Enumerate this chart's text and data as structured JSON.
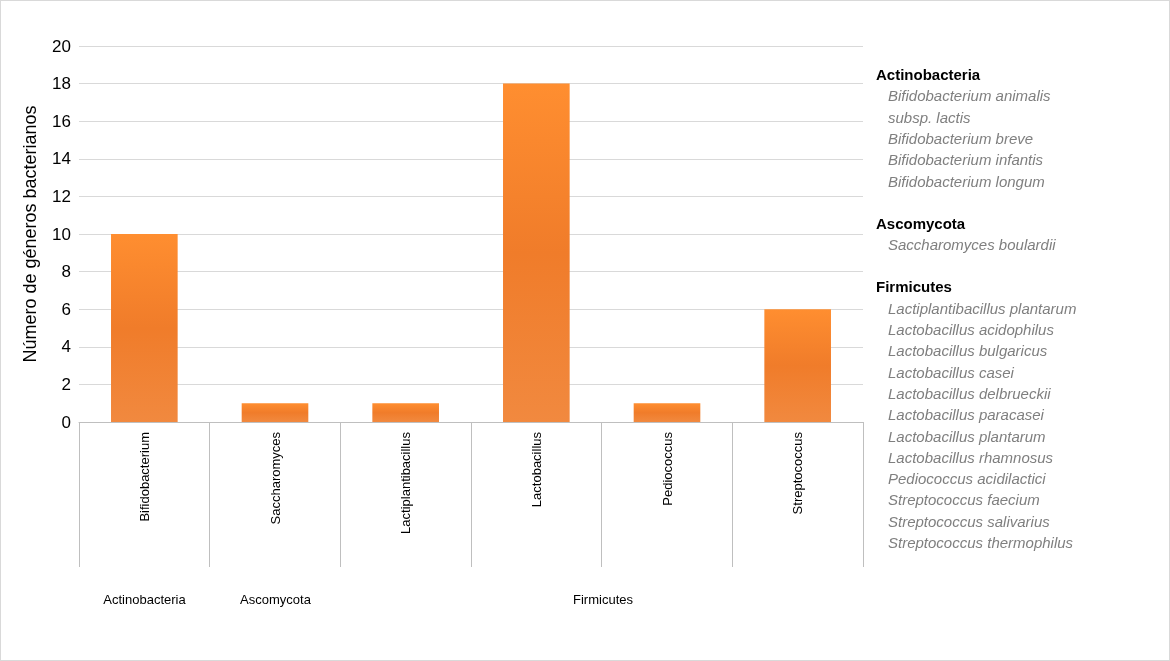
{
  "chart_data": {
    "type": "bar",
    "ylabel": "Número de géneros bacterianos",
    "categories": [
      "Bifidobacterium",
      "Saccharomyces",
      "Lactiplantibacillus",
      "Lactobacillus",
      "Pediococcus",
      "Streptococcus"
    ],
    "values": [
      10,
      1,
      1,
      18,
      1,
      6
    ],
    "color": "#f07c2a",
    "ylim": [
      0,
      20
    ],
    "yticks": [
      0,
      2,
      4,
      6,
      8,
      10,
      12,
      14,
      16,
      18,
      20
    ],
    "grid": "y",
    "annotations": [
      "Actinobacteria",
      "Ascomycota",
      "Firmicutes",
      "Actinobacteria\nBifidobacterium animalis\nsubsp. lactis\nBifidobacterium breve\nBifidobacterium infantis\nBifidobacterium longum",
      "Ascomycota\nSaccharomyces boulardii",
      "Firmicutes\nLactiplantibacillus plantarum\nLactobacillus acidophilus\nLactobacillus bulgaricus\nLactobacillus casei\nLactobacillus delbrueckii\nLactobacillus paracasei\nLactobacillus plantarum\nLactobacillus rhamnosus\nPediococcus acidilactici\nStreptococcus faecium\nStreptococcus salivarius\nStreptococcus thermophilus"
    ]
  }
}
